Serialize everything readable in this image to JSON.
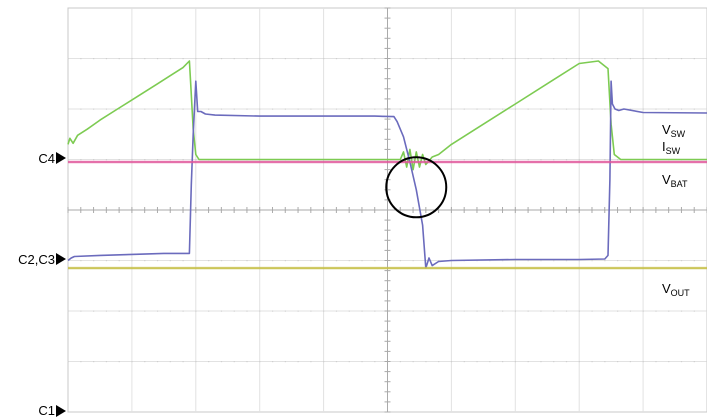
{
  "chart_data": {
    "type": "line",
    "title": "",
    "xlabel": "",
    "ylabel": "",
    "grid": true,
    "grid_divisions": {
      "x": 10,
      "y": 8
    },
    "xlim": [
      0,
      10
    ],
    "ylim": [
      -4,
      4
    ],
    "channel_markers": [
      {
        "label": "C4",
        "level": 1.0
      },
      {
        "label": "C2,C3",
        "level": -1.0
      },
      {
        "label": "C1",
        "level": -4.0
      }
    ],
    "series": [
      {
        "name": "ISW",
        "label_main": "I",
        "label_sub": "SW",
        "color": "#7dcb52",
        "x": [
          0,
          0.03,
          0.08,
          0.15,
          0.3,
          0.5,
          0.8,
          1.1,
          1.4,
          1.6,
          1.8,
          1.9,
          1.92,
          1.96,
          2.0,
          2.05,
          2.15,
          3.0,
          4.0,
          5.0,
          5.2,
          5.25,
          5.3,
          5.35,
          5.4,
          5.45,
          5.5,
          5.55,
          5.6,
          5.7,
          5.8,
          6.0,
          6.4,
          7.0,
          7.6,
          8.0,
          8.3,
          8.45,
          8.5,
          8.55,
          8.65,
          10.0
        ],
        "y": [
          1.3,
          1.42,
          1.32,
          1.48,
          1.6,
          1.78,
          2.02,
          2.26,
          2.5,
          2.66,
          2.82,
          2.95,
          2.5,
          1.6,
          1.1,
          1.0,
          1.0,
          1.0,
          1.0,
          1.0,
          1.0,
          1.15,
          0.85,
          1.2,
          0.8,
          1.15,
          0.85,
          1.1,
          0.9,
          1.05,
          1.1,
          1.3,
          1.62,
          2.1,
          2.58,
          2.9,
          2.95,
          2.8,
          1.7,
          1.1,
          1.0,
          1.0
        ]
      },
      {
        "name": "VSW",
        "label_main": "V",
        "label_sub": "SW",
        "color": "#6b6bbd",
        "x": [
          0,
          0.05,
          0.1,
          0.5,
          1.0,
          1.5,
          1.9,
          1.93,
          1.96,
          2.0,
          2.03,
          2.08,
          2.15,
          2.3,
          3.0,
          4.0,
          4.8,
          5.1,
          5.15,
          5.25,
          5.35,
          5.45,
          5.55,
          5.6,
          5.65,
          5.7,
          5.8,
          6.0,
          7.0,
          8.0,
          8.4,
          8.45,
          8.48,
          8.5,
          8.52,
          8.56,
          8.62,
          8.7,
          9.0,
          10.0
        ],
        "y": [
          -1.0,
          -0.95,
          -0.92,
          -0.9,
          -0.88,
          -0.86,
          -0.86,
          0.5,
          1.5,
          2.55,
          1.95,
          1.95,
          1.9,
          1.88,
          1.86,
          1.86,
          1.86,
          1.85,
          1.75,
          1.45,
          0.95,
          0.4,
          -0.3,
          -1.15,
          -0.95,
          -1.1,
          -1.02,
          -1.0,
          -0.98,
          -0.98,
          -0.97,
          -0.9,
          0.6,
          2.55,
          2.1,
          2.0,
          1.97,
          2.0,
          1.93,
          1.92
        ]
      },
      {
        "name": "VBAT",
        "label_main": "V",
        "label_sub": "BAT",
        "color": "#e0559a",
        "x": [
          0,
          10
        ],
        "y": [
          0.95,
          0.95
        ]
      },
      {
        "name": "VOUT",
        "label_main": "V",
        "label_sub": "OUT",
        "color": "#c7c04a",
        "x": [
          0,
          10
        ],
        "y": [
          -1.15,
          -1.15
        ]
      }
    ],
    "annotations": [
      {
        "type": "circle",
        "x": 5.45,
        "y": 0.45
      }
    ]
  }
}
